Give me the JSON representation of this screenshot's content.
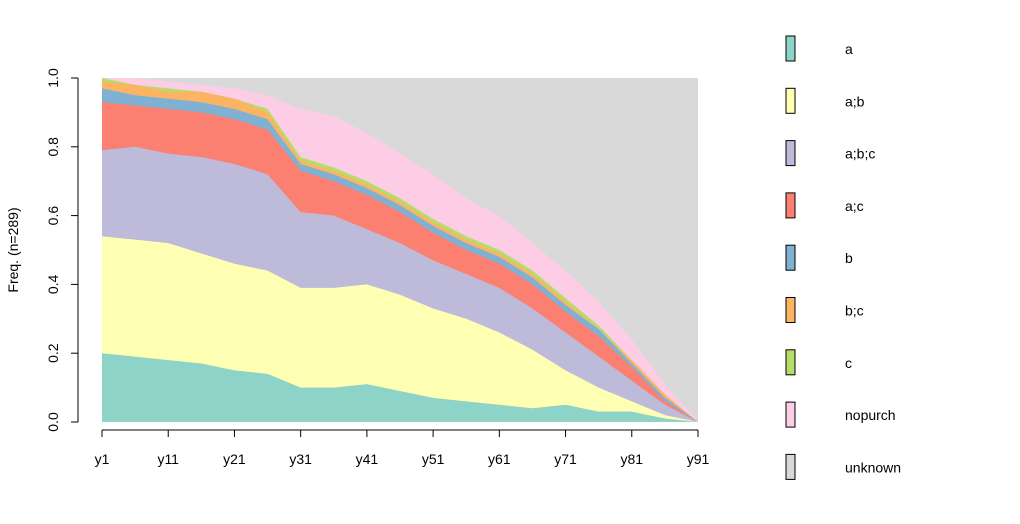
{
  "chart_data": {
    "type": "area",
    "subtype": "stacked-100-percent-step",
    "ylabel": "Freq. (n=289)",
    "xlabel": "",
    "ylim": [
      0,
      1
    ],
    "yticks": [
      "0.0",
      "0.2",
      "0.4",
      "0.6",
      "0.8",
      "1.0"
    ],
    "xticks": [
      "y1",
      "y11",
      "y21",
      "y31",
      "y41",
      "y51",
      "y61",
      "y71",
      "y81",
      "y91"
    ],
    "legend_position": "right",
    "grid": false,
    "series": [
      {
        "name": "a",
        "color": "#8DD3C7"
      },
      {
        "name": "a;b",
        "color": "#FFFFB3"
      },
      {
        "name": "a;b;c",
        "color": "#BEBADA"
      },
      {
        "name": "a;c",
        "color": "#FB8072"
      },
      {
        "name": "b",
        "color": "#80B1D3"
      },
      {
        "name": "b;c",
        "color": "#FDB462"
      },
      {
        "name": "c",
        "color": "#B3DE69"
      },
      {
        "name": "nopurch",
        "color": "#FCCDE5"
      },
      {
        "name": "unknown",
        "color": "#D9D9D9"
      }
    ],
    "x": [
      "y1",
      "y6",
      "y11",
      "y16",
      "y21",
      "y26",
      "y31",
      "y36",
      "y41",
      "y46",
      "y51",
      "y56",
      "y61",
      "y66",
      "y71",
      "y76",
      "y81",
      "y86",
      "y91"
    ],
    "cumulative_boundaries": {
      "a": [
        0.2,
        0.19,
        0.18,
        0.17,
        0.15,
        0.14,
        0.1,
        0.1,
        0.11,
        0.09,
        0.07,
        0.06,
        0.05,
        0.04,
        0.05,
        0.03,
        0.03,
        0.01,
        0.0
      ],
      "a;b": [
        0.54,
        0.53,
        0.52,
        0.49,
        0.46,
        0.44,
        0.39,
        0.39,
        0.4,
        0.37,
        0.33,
        0.3,
        0.26,
        0.21,
        0.15,
        0.1,
        0.06,
        0.02,
        0.0
      ],
      "a;b;c": [
        0.79,
        0.8,
        0.78,
        0.77,
        0.75,
        0.72,
        0.61,
        0.6,
        0.56,
        0.52,
        0.47,
        0.43,
        0.39,
        0.33,
        0.26,
        0.19,
        0.12,
        0.05,
        0.0
      ],
      "a;c": [
        0.93,
        0.92,
        0.91,
        0.9,
        0.88,
        0.85,
        0.73,
        0.7,
        0.66,
        0.61,
        0.55,
        0.5,
        0.46,
        0.4,
        0.32,
        0.25,
        0.16,
        0.06,
        0.0
      ],
      "b": [
        0.97,
        0.95,
        0.94,
        0.93,
        0.91,
        0.88,
        0.75,
        0.72,
        0.68,
        0.63,
        0.57,
        0.52,
        0.48,
        0.42,
        0.34,
        0.27,
        0.17,
        0.07,
        0.0
      ],
      "b;c": [
        0.99,
        0.98,
        0.96,
        0.96,
        0.94,
        0.9,
        0.76,
        0.73,
        0.69,
        0.64,
        0.58,
        0.53,
        0.49,
        0.43,
        0.35,
        0.27,
        0.18,
        0.08,
        0.0
      ],
      "c": [
        1.0,
        0.98,
        0.97,
        0.96,
        0.94,
        0.91,
        0.77,
        0.74,
        0.7,
        0.65,
        0.59,
        0.54,
        0.5,
        0.44,
        0.36,
        0.28,
        0.18,
        0.08,
        0.0
      ],
      "nopurch": [
        1.0,
        1.0,
        0.99,
        0.98,
        0.97,
        0.95,
        0.91,
        0.89,
        0.84,
        0.78,
        0.72,
        0.65,
        0.6,
        0.52,
        0.44,
        0.35,
        0.24,
        0.11,
        0.0
      ],
      "unknown": [
        1.0,
        1.0,
        1.0,
        1.0,
        1.0,
        1.0,
        1.0,
        1.0,
        1.0,
        1.0,
        1.0,
        1.0,
        1.0,
        1.0,
        1.0,
        1.0,
        1.0,
        1.0,
        1.0
      ]
    }
  }
}
